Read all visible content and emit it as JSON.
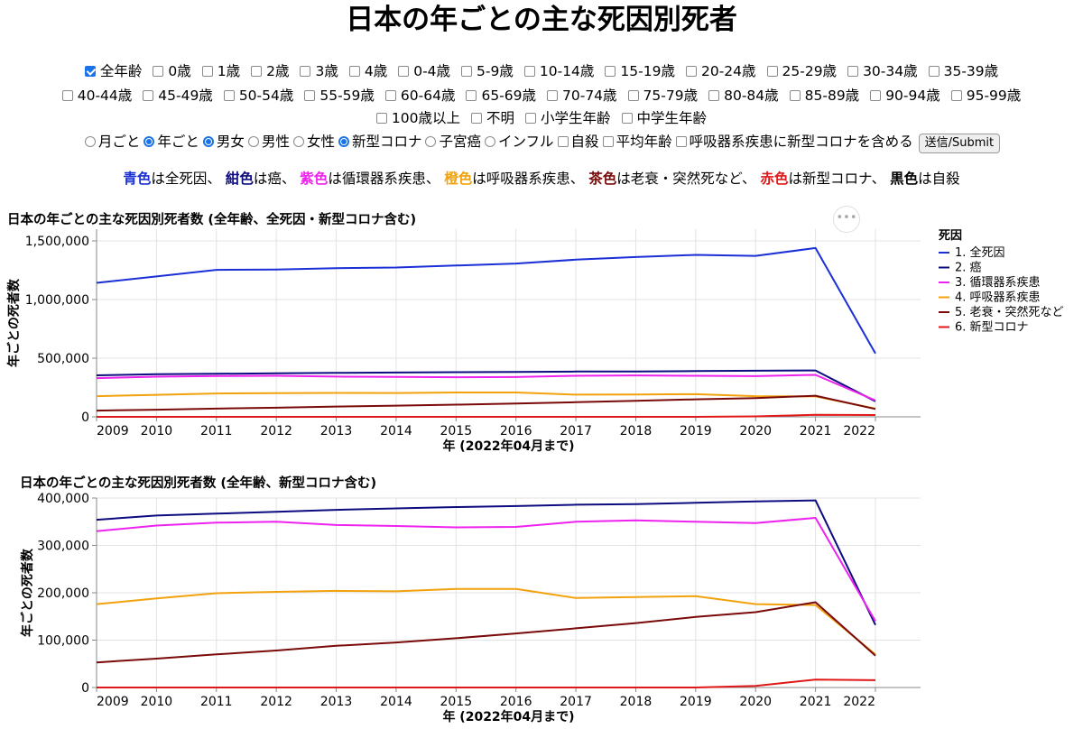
{
  "page": {
    "title": "日本の年ごとの主な死因別死者"
  },
  "age_filters": {
    "row1": [
      {
        "label": "全年齢",
        "checked": true
      },
      {
        "label": "0歳",
        "checked": false
      },
      {
        "label": "1歳",
        "checked": false
      },
      {
        "label": "2歳",
        "checked": false
      },
      {
        "label": "3歳",
        "checked": false
      },
      {
        "label": "4歳",
        "checked": false
      },
      {
        "label": "0-4歳",
        "checked": false
      },
      {
        "label": "5-9歳",
        "checked": false
      },
      {
        "label": "10-14歳",
        "checked": false
      },
      {
        "label": "15-19歳",
        "checked": false
      },
      {
        "label": "20-24歳",
        "checked": false
      },
      {
        "label": "25-29歳",
        "checked": false
      },
      {
        "label": "30-34歳",
        "checked": false
      },
      {
        "label": "35-39歳",
        "checked": false
      }
    ],
    "row2": [
      {
        "label": "40-44歳",
        "checked": false
      },
      {
        "label": "45-49歳",
        "checked": false
      },
      {
        "label": "50-54歳",
        "checked": false
      },
      {
        "label": "55-59歳",
        "checked": false
      },
      {
        "label": "60-64歳",
        "checked": false
      },
      {
        "label": "65-69歳",
        "checked": false
      },
      {
        "label": "70-74歳",
        "checked": false
      },
      {
        "label": "75-79歳",
        "checked": false
      },
      {
        "label": "80-84歳",
        "checked": false
      },
      {
        "label": "85-89歳",
        "checked": false
      },
      {
        "label": "90-94歳",
        "checked": false
      },
      {
        "label": "95-99歳",
        "checked": false
      }
    ],
    "row3": [
      {
        "label": "100歳以上",
        "checked": false
      },
      {
        "label": "不明",
        "checked": false
      },
      {
        "label": "小学生年齢",
        "checked": false
      },
      {
        "label": "中学生年齢",
        "checked": false
      }
    ]
  },
  "options": [
    {
      "type": "radio",
      "label": "月ごと",
      "checked": false
    },
    {
      "type": "radio",
      "label": "年ごと",
      "checked": true
    },
    {
      "type": "radio",
      "label": "男女",
      "checked": true
    },
    {
      "type": "radio",
      "label": "男性",
      "checked": false
    },
    {
      "type": "radio",
      "label": "女性",
      "checked": false
    },
    {
      "type": "radio",
      "label": "新型コロナ",
      "checked": true
    },
    {
      "type": "radio",
      "label": "子宮癌",
      "checked": false
    },
    {
      "type": "radio",
      "label": "インフル",
      "checked": false
    },
    {
      "type": "checkbox",
      "label": "自殺",
      "checked": false
    },
    {
      "type": "checkbox",
      "label": "平均年齢",
      "checked": false
    },
    {
      "type": "checkbox",
      "label": "呼吸器系疾患に新型コロナを含める",
      "checked": false
    }
  ],
  "submit_label": "送信/Submit",
  "color_legend": [
    {
      "color_word": "青色",
      "color": "#1a2fd6",
      "text": "は全死因、"
    },
    {
      "color_word": "紺色",
      "color": "#0c0c80",
      "text": "は癌、"
    },
    {
      "color_word": "紫色",
      "color": "#ee22ee",
      "text": "は循環器系疾患、"
    },
    {
      "color_word": "橙色",
      "color": "#f2a20c",
      "text": "は呼吸器系疾患、"
    },
    {
      "color_word": "茶色",
      "color": "#7a0a0a",
      "text": "は老衰・突然死など、"
    },
    {
      "color_word": "赤色",
      "color": "#e01818",
      "text": "は新型コロナ、"
    },
    {
      "color_word": "黒色",
      "color": "#000000",
      "text": "は自殺"
    }
  ],
  "menu_icon": "ellipsis-icon",
  "chart_data": [
    {
      "type": "line",
      "title": "日本の年ごとの主な死因別死者数 (全年齢、全死因・新型コロナ含む)",
      "xlabel": "年 (2022年04月まで)",
      "ylabel": "年ごとの死者数",
      "x": [
        "2009",
        "2010",
        "2011",
        "2012",
        "2013",
        "2014",
        "2015",
        "2016",
        "2017",
        "2018",
        "2019",
        "2020",
        "2021",
        "2022"
      ],
      "x_ticks": [
        "2009",
        "2010",
        "2011",
        "2012",
        "2013",
        "2014",
        "2015",
        "2016",
        "2017",
        "2018",
        "2019",
        "2020",
        "2021",
        "2022"
      ],
      "ylim": [
        0,
        1600000
      ],
      "y_ticks": [
        0,
        500000,
        1000000,
        1500000
      ],
      "y_tick_labels": [
        "0",
        "500,000",
        "1,000,000",
        "1,500,000"
      ],
      "grid": true,
      "legend_title": "死因",
      "series": [
        {
          "name": "1. 全死因",
          "color": "#1a2fd6",
          "values": [
            1142000,
            1197000,
            1253000,
            1256000,
            1268000,
            1273000,
            1290000,
            1307000,
            1340000,
            1362000,
            1381000,
            1372000,
            1439000,
            540000
          ]
        },
        {
          "name": "2. 癌",
          "color": "#0c0c80",
          "values": [
            354000,
            363000,
            367000,
            371000,
            375000,
            378000,
            381000,
            383000,
            386000,
            387000,
            390000,
            393000,
            395000,
            132000
          ]
        },
        {
          "name": "3. 循環器系疾患",
          "color": "#ee22ee",
          "values": [
            330000,
            342000,
            348000,
            350000,
            343000,
            341000,
            338000,
            339000,
            350000,
            353000,
            350000,
            347000,
            358000,
            140000
          ]
        },
        {
          "name": "4. 呼吸器系疾患",
          "color": "#f2a20c",
          "values": [
            176000,
            188000,
            199000,
            202000,
            204000,
            203000,
            208000,
            208000,
            189000,
            191000,
            193000,
            176000,
            174000,
            70000
          ]
        },
        {
          "name": "5. 老衰・突然死など",
          "color": "#7a0a0a",
          "values": [
            53000,
            61000,
            70000,
            78000,
            88000,
            95000,
            104000,
            114000,
            125000,
            136000,
            149000,
            159000,
            180000,
            67000
          ]
        },
        {
          "name": "6. 新型コロナ",
          "color": "#e01818",
          "values": [
            0,
            0,
            0,
            0,
            0,
            0,
            0,
            0,
            0,
            0,
            0,
            3500,
            16700,
            15500
          ]
        }
      ]
    },
    {
      "type": "line",
      "title": "日本の年ごとの主な死因別死者数 (全年齢、新型コロナ含む)",
      "xlabel": "年 (2022年04月まで)",
      "ylabel": "年ごとの死者数",
      "x": [
        "2009",
        "2010",
        "2011",
        "2012",
        "2013",
        "2014",
        "2015",
        "2016",
        "2017",
        "2018",
        "2019",
        "2020",
        "2021",
        "2022"
      ],
      "x_ticks": [
        "2009",
        "2010",
        "2011",
        "2012",
        "2013",
        "2014",
        "2015",
        "2016",
        "2017",
        "2018",
        "2019",
        "2020",
        "2021",
        "2022"
      ],
      "ylim": [
        0,
        400000
      ],
      "y_ticks": [
        0,
        100000,
        200000,
        300000,
        400000
      ],
      "y_tick_labels": [
        "0",
        "100,000",
        "200,000",
        "300,000",
        "400,000"
      ],
      "grid": true,
      "series": [
        {
          "color": "#0c0c80",
          "values": [
            354000,
            363000,
            367000,
            371000,
            375000,
            378000,
            381000,
            383000,
            386000,
            387000,
            390000,
            393000,
            395000,
            132000
          ]
        },
        {
          "color": "#ee22ee",
          "values": [
            330000,
            342000,
            348000,
            350000,
            343000,
            341000,
            338000,
            339000,
            350000,
            353000,
            350000,
            347000,
            358000,
            140000
          ]
        },
        {
          "color": "#f2a20c",
          "values": [
            176000,
            188000,
            199000,
            202000,
            204000,
            203000,
            208000,
            208000,
            189000,
            191000,
            193000,
            176000,
            174000,
            70000
          ]
        },
        {
          "color": "#7a0a0a",
          "values": [
            53000,
            61000,
            70000,
            78000,
            88000,
            95000,
            104000,
            114000,
            125000,
            136000,
            149000,
            159000,
            180000,
            67000
          ]
        },
        {
          "color": "#e01818",
          "values": [
            0,
            0,
            0,
            0,
            0,
            0,
            0,
            0,
            0,
            0,
            0,
            3500,
            16700,
            15500
          ]
        }
      ]
    }
  ]
}
